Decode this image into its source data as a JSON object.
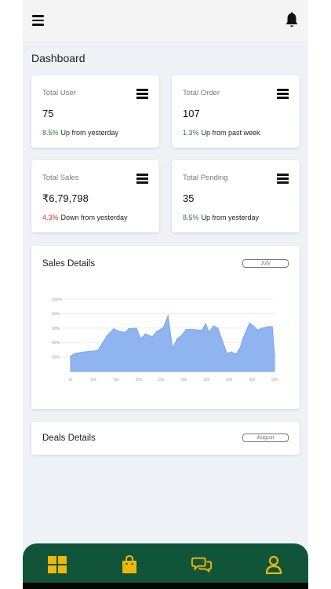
{
  "colors": {
    "accent": "#10553a",
    "nav_icon": "#f2b705",
    "up": "#2e7d32",
    "down": "#d32f2f",
    "chart_fill": "#8fb4f0",
    "chart_stroke": "#7aa5ee"
  },
  "header": {
    "menu_icon": "menu-icon",
    "bell_icon": "bell-icon"
  },
  "dashboard": {
    "title": "Dashboard"
  },
  "stats": [
    {
      "label": "Total User",
      "value": "75",
      "pct": "8.5%",
      "trend_text": "Up from yesterday",
      "direction": "up"
    },
    {
      "label": "Total Order",
      "value": "107",
      "pct": "1.3%",
      "trend_text": "Up from past week",
      "direction": "up"
    },
    {
      "label": "Total Sales",
      "value": "₹6,79,798",
      "pct": "4.3%",
      "trend_text": "Down from yesterday",
      "direction": "down"
    },
    {
      "label": "Total Pending",
      "value": "35",
      "pct": "8.5%",
      "trend_text": "Up from yesterday",
      "direction": "up"
    }
  ],
  "sales": {
    "title": "Sales Details",
    "month": "July"
  },
  "deals": {
    "title": "Deals Details",
    "month": "August"
  },
  "chart_data": {
    "type": "area",
    "ylim": [
      0,
      100
    ],
    "y_ticks": [
      "20%",
      "40%",
      "60%",
      "80%",
      "100%"
    ],
    "x_ticks": [
      "5k",
      "10k",
      "15k",
      "20k",
      "25k",
      "30k",
      "35k",
      "40k",
      "45k",
      "50k"
    ],
    "grid": true,
    "series": [
      {
        "x": [
          5,
          6,
          8,
          11,
          13,
          14.5,
          15.5,
          17,
          17.8,
          19.5,
          20.5,
          21.5,
          23,
          24,
          25.5,
          26.5,
          27.5,
          28.5,
          29.5,
          30.5,
          32,
          34,
          34.8,
          35.6,
          36.5,
          37.5,
          39.5,
          40.5,
          41.5,
          42.5,
          43,
          44.5,
          45.5,
          46.3,
          47.2,
          48.5,
          49.5,
          50
        ],
        "y": [
          21,
          25,
          27,
          29,
          49,
          59,
          56,
          54,
          59,
          60,
          45,
          52,
          48,
          55,
          61,
          77,
          32,
          45,
          50,
          58,
          58,
          57,
          66,
          54,
          63,
          60,
          25,
          27,
          24,
          34,
          45,
          67,
          62,
          57,
          60,
          62,
          62,
          23
        ]
      }
    ]
  },
  "nav": [
    {
      "name": "dashboard-icon"
    },
    {
      "name": "shopping-bag-icon"
    },
    {
      "name": "chat-icon"
    },
    {
      "name": "user-icon"
    }
  ]
}
